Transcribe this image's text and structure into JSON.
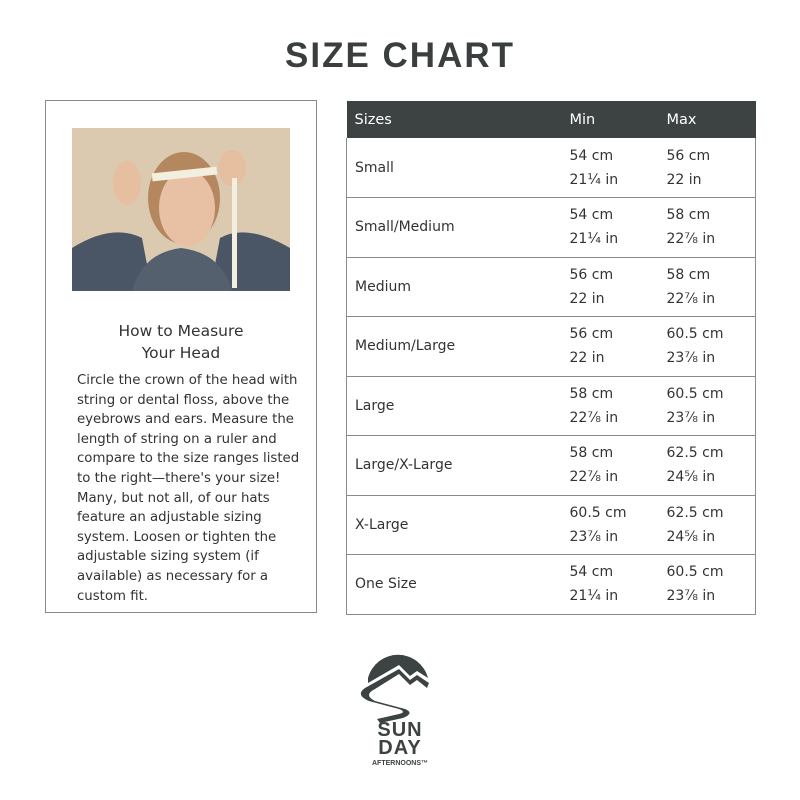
{
  "page_title": "SIZE CHART",
  "guide": {
    "heading_line1": "How to Measure",
    "heading_line2": "Your Head",
    "description": "Circle the crown of the head with string or dental floss, above the eyebrows and ears. Measure the length of string on a ruler and compare to the size ranges listed to the right—there's your size! Many, but not all, of our hats feature an adjustable sizing system. Loosen or tighten the adjustable sizing system (if available) as necessary for a custom fit."
  },
  "table": {
    "headers": [
      "Sizes",
      "Min",
      "Max"
    ],
    "rows": [
      {
        "size": "Small",
        "min_cm": "54 cm",
        "min_in": "21¼ in",
        "max_cm": "56 cm",
        "max_in": "22 in"
      },
      {
        "size": "Small/Medium",
        "min_cm": "54 cm",
        "min_in": "21¼ in",
        "max_cm": "58 cm",
        "max_in": "22⅞ in"
      },
      {
        "size": "Medium",
        "min_cm": "56 cm",
        "min_in": "22 in",
        "max_cm": "58 cm",
        "max_in": "22⅞ in"
      },
      {
        "size": "Medium/Large",
        "min_cm": "56 cm",
        "min_in": "22 in",
        "max_cm": "60.5 cm",
        "max_in": "23⅞ in"
      },
      {
        "size": "Large",
        "min_cm": "58 cm",
        "min_in": "22⅞ in",
        "max_cm": "60.5 cm",
        "max_in": "23⅞ in"
      },
      {
        "size": "Large/X-Large",
        "min_cm": "58 cm",
        "min_in": "22⅞ in",
        "max_cm": "62.5 cm",
        "max_in": "24⅝ in"
      },
      {
        "size": "X-Large",
        "min_cm": "60.5 cm",
        "min_in": "23⅞ in",
        "max_cm": "62.5 cm",
        "max_in": "24⅝ in"
      },
      {
        "size": "One Size",
        "min_cm": "54 cm",
        "min_in": "21¼ in",
        "max_cm": "60.5 cm",
        "max_in": "23⅞ in"
      }
    ]
  },
  "logo": {
    "line1": "SUN",
    "line2": "DAY",
    "line3": "AFTERNOONS™"
  },
  "colors": {
    "header_bg": "#3d4242",
    "text": "#333333",
    "border": "#8a8a8a"
  }
}
